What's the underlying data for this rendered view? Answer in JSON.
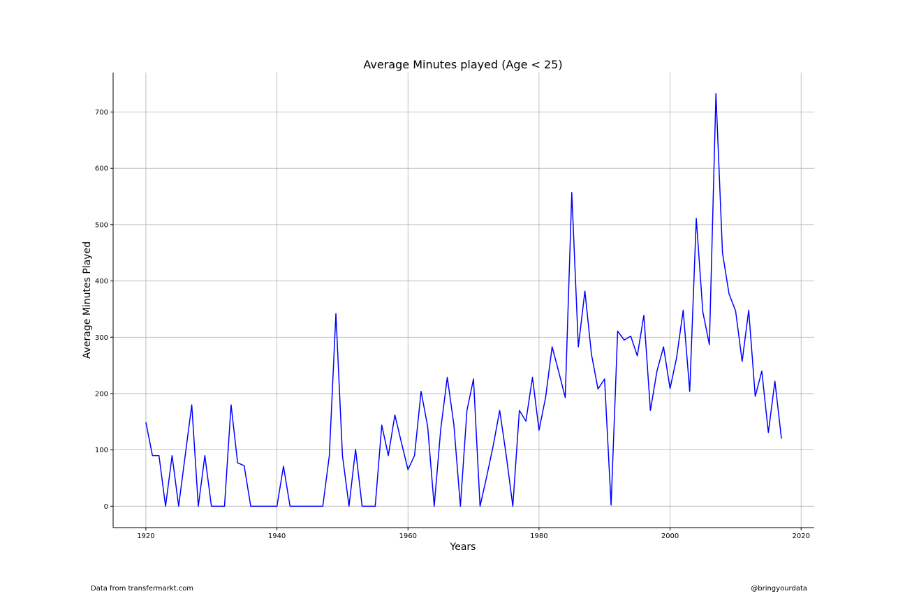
{
  "chart_data": {
    "type": "line",
    "title": "Average Minutes played (Age < 25)",
    "xlabel": "Years",
    "ylabel": "Average Minutes Played",
    "xlim": [
      1915,
      2022
    ],
    "ylim": [
      -38,
      770
    ],
    "xticks": [
      1920,
      1940,
      1960,
      1980,
      2000,
      2020
    ],
    "yticks": [
      0,
      100,
      200,
      300,
      400,
      500,
      600,
      700
    ],
    "grid": true,
    "line_color": "#0000ff",
    "series": [
      {
        "x": [
          1920,
          1921,
          1922,
          1923,
          1924,
          1925,
          1926,
          1927,
          1928,
          1929,
          1930,
          1931,
          1932,
          1933,
          1934,
          1935,
          1936,
          1937,
          1938,
          1939,
          1940,
          1941,
          1942,
          1943,
          1944,
          1945,
          1946,
          1947,
          1948,
          1949,
          1950,
          1951,
          1952,
          1953,
          1954,
          1955,
          1956,
          1957,
          1958,
          1959,
          1960,
          1961,
          1962,
          1963,
          1964,
          1965,
          1966,
          1967,
          1968,
          1969,
          1970,
          1971,
          1972,
          1973,
          1974,
          1975,
          1976,
          1977,
          1978,
          1979,
          1980,
          1981,
          1982,
          1983,
          1984,
          1985,
          1986,
          1987,
          1988,
          1989,
          1990,
          1991,
          1992,
          1993,
          1994,
          1995,
          1996,
          1997,
          1998,
          1999,
          2000,
          2001,
          2002,
          2003,
          2004,
          2005,
          2006,
          2007,
          2008,
          2009,
          2010,
          2011,
          2012,
          2013,
          2014,
          2015,
          2016,
          2017
        ],
        "values": [
          149,
          90,
          90,
          0,
          90,
          0,
          90,
          180,
          0,
          90,
          0,
          0,
          0,
          180,
          77,
          72,
          0,
          0,
          0,
          0,
          0,
          71,
          0,
          0,
          0,
          0,
          0,
          0,
          90,
          342,
          90,
          0,
          101,
          0,
          0,
          0,
          144,
          90,
          162,
          113,
          65,
          90,
          204,
          142,
          0,
          137,
          229,
          145,
          0,
          170,
          226,
          0,
          52,
          107,
          170,
          90,
          0,
          170,
          151,
          229,
          135,
          193,
          283,
          239,
          193,
          557,
          283,
          382,
          270,
          208,
          226,
          2,
          311,
          295,
          302,
          267,
          339,
          170,
          240,
          283,
          209,
          264,
          348,
          204,
          511,
          345,
          287,
          733,
          450,
          377,
          347,
          257,
          348,
          195,
          240,
          131,
          222,
          120
        ]
      }
    ],
    "source_note": "Data from transfermarkt.com",
    "credit": "@bringyourdata"
  }
}
